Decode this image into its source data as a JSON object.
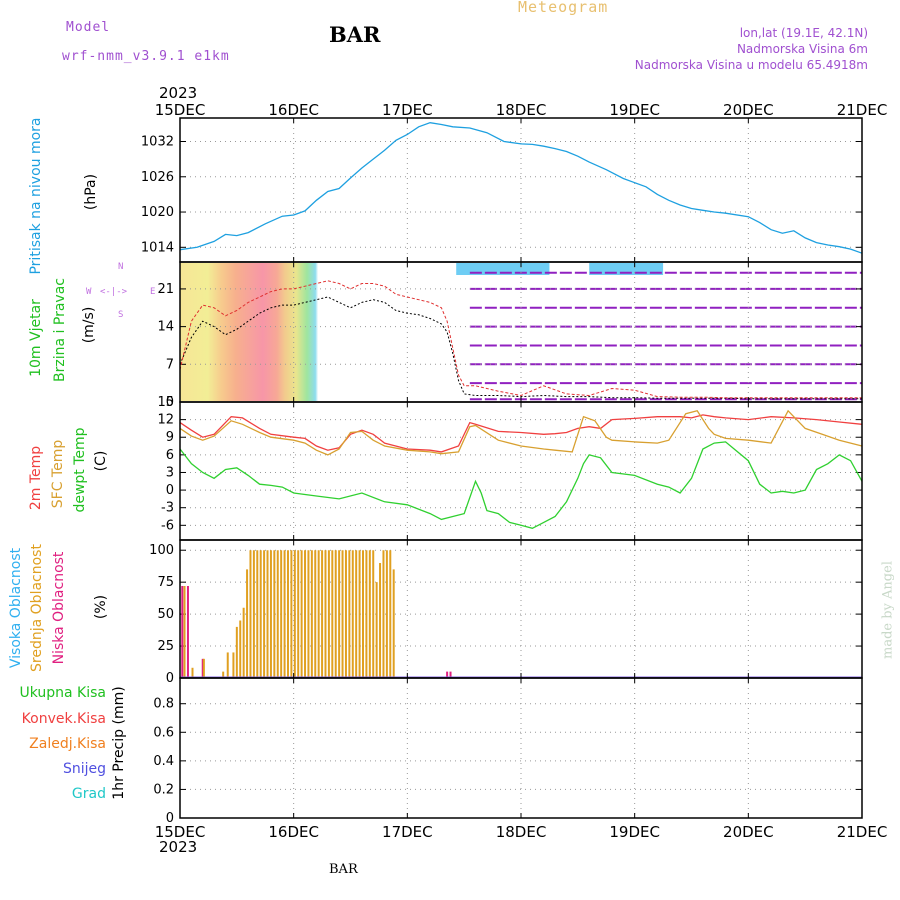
{
  "header": {
    "model_label": "Model",
    "model_name": "wrf-nmm_v3.9.1 e1km",
    "station": "BAR",
    "app_title": "Meteogram",
    "location": "lon,lat (19.1E, 42.1N)",
    "altitude": "Nadmorska Visina 6m",
    "model_altitude": "Nadmorska Visina u modelu 65.4918m"
  },
  "footer": {
    "station": "BAR",
    "credit": "made by Angel"
  },
  "time_axis": {
    "year_top": "2023",
    "year_bottom": "2023",
    "ticks": [
      "15DEC",
      "16DEC",
      "17DEC",
      "18DEC",
      "19DEC",
      "20DEC",
      "21DEC"
    ]
  },
  "colors": {
    "pressure": "#1ea0e0",
    "temp2m": "#f04040",
    "sfc_temp": "#d8a030",
    "dewpt": "#30d030",
    "high_cloud": "#30b0f0",
    "mid_cloud": "#e0a020",
    "low_cloud": "#e02080",
    "wind_label": "#20c020",
    "total_precip": "#20c020",
    "conv_precip": "#f04040",
    "freezing_precip": "#f08020",
    "snow": "#5050e0",
    "hail": "#20c8c8",
    "wind_compass": "#c070e0"
  },
  "panels": {
    "pressure": {
      "label": "Pritisak na nivou mora",
      "unit": "(hPa)"
    },
    "wind": {
      "label1": "10m Vjetar",
      "label2": "Brzina i Pravac",
      "unit": "(m/s)",
      "compass": {
        "n": "N",
        "s": "S",
        "w": "W",
        "e": "E"
      }
    },
    "temp": {
      "label1": "2m Temp",
      "label2": "SFC Temp",
      "label3": "dewpt Temp",
      "unit": "(C)"
    },
    "cloud": {
      "label1": "Visoka Oblacnost",
      "label2": "Srednja Oblacnost",
      "label3": "Niska Oblacnost",
      "unit": "(%)"
    },
    "precip": {
      "unit": "1hr Precip (mm)",
      "legend": [
        "Ukupna Kisa",
        "Konvek.Kisa",
        "Zaledj.Kisa",
        "Snijeg",
        "Grad"
      ]
    }
  },
  "chart_data": [
    {
      "type": "line",
      "title": "Pritisak na nivou mora",
      "ylabel": "(hPa)",
      "x_unit": "days since 15DEC 00Z",
      "ylim": [
        1011.5,
        1036
      ],
      "yticks": [
        1014,
        1020,
        1026,
        1032
      ],
      "grid": true,
      "series": [
        {
          "name": "Pritisak na nivou mora",
          "x": [
            0,
            0.15,
            0.3,
            0.4,
            0.5,
            0.6,
            0.75,
            0.9,
            1.0,
            1.1,
            1.2,
            1.3,
            1.4,
            1.5,
            1.6,
            1.7,
            1.8,
            1.9,
            2.0,
            2.1,
            2.2,
            2.3,
            2.4,
            2.55,
            2.7,
            2.85,
            3.0,
            3.1,
            3.2,
            3.3,
            3.4,
            3.5,
            3.6,
            3.75,
            3.9,
            4.0,
            4.1,
            4.2,
            4.3,
            4.4,
            4.5,
            4.6,
            4.7,
            4.8,
            5.0,
            5.1,
            5.2,
            5.3,
            5.4,
            5.5,
            5.6,
            5.7,
            5.8,
            5.9,
            6.0
          ],
          "y": [
            1013.6,
            1014.0,
            1015.0,
            1016.2,
            1016.0,
            1016.5,
            1018.0,
            1019.3,
            1019.5,
            1020.2,
            1022.0,
            1023.5,
            1024.0,
            1025.8,
            1027.5,
            1029.0,
            1030.5,
            1032.2,
            1033.2,
            1034.5,
            1035.2,
            1034.9,
            1034.5,
            1034.3,
            1033.5,
            1032.0,
            1031.6,
            1031.5,
            1031.2,
            1030.8,
            1030.3,
            1029.5,
            1028.5,
            1027.2,
            1025.7,
            1025.0,
            1024.3,
            1023.0,
            1022.0,
            1021.2,
            1020.6,
            1020.3,
            1020.0,
            1019.8,
            1019.2,
            1018.2,
            1017.0,
            1016.4,
            1016.8,
            1015.6,
            1014.8,
            1014.4,
            1014.1,
            1013.7,
            1013.0
          ]
        }
      ]
    },
    {
      "type": "line",
      "title": "10m Vjetar Brzina i Pravac",
      "ylabel": "(m/s)",
      "x_unit": "days since 15DEC 00Z",
      "ylim": [
        0,
        26
      ],
      "yticks": [
        0,
        7,
        14,
        21
      ],
      "grid": true,
      "series": [
        {
          "name": "wind speed black",
          "x": [
            0,
            0.1,
            0.2,
            0.3,
            0.4,
            0.5,
            0.6,
            0.7,
            0.8,
            0.9,
            1.0,
            1.1,
            1.2,
            1.3,
            1.4,
            1.5,
            1.6,
            1.7,
            1.8,
            1.9,
            2.0,
            2.1,
            2.2,
            2.3,
            2.35,
            2.4,
            2.45,
            2.5,
            2.6,
            2.8,
            3.0,
            3.2,
            3.4,
            3.6,
            3.8,
            4.0,
            4.2,
            4.4,
            4.6,
            4.8,
            5.0,
            5.2,
            5.4,
            5.6,
            5.8,
            6.0
          ],
          "y": [
            7,
            12,
            15,
            14,
            12.5,
            13.5,
            15,
            16.5,
            17.5,
            18,
            18,
            18.5,
            19,
            19.5,
            18.5,
            17.5,
            18.5,
            19,
            18.5,
            17,
            16.5,
            16.2,
            15.5,
            14.5,
            13,
            9,
            4,
            1.5,
            1.2,
            1.2,
            1.0,
            1.2,
            1.0,
            1.0,
            0.8,
            0.8,
            0.7,
            0.7,
            0.7,
            0.7,
            0.6,
            0.6,
            0.6,
            0.6,
            0.6,
            0.6
          ]
        },
        {
          "name": "wind gust red",
          "x": [
            0,
            0.1,
            0.2,
            0.3,
            0.4,
            0.5,
            0.6,
            0.7,
            0.8,
            0.9,
            1.0,
            1.1,
            1.2,
            1.3,
            1.4,
            1.5,
            1.6,
            1.7,
            1.8,
            1.9,
            2.0,
            2.1,
            2.2,
            2.3,
            2.35,
            2.4,
            2.45,
            2.5,
            2.6,
            2.8,
            3.0,
            3.2,
            3.4,
            3.6,
            3.8,
            4.0,
            4.2,
            4.4,
            4.6,
            4.8,
            5.0,
            5.2,
            5.4,
            5.6,
            5.8,
            6.0
          ],
          "y": [
            6,
            15,
            18,
            17.5,
            16,
            17,
            18.5,
            19.5,
            20.5,
            21,
            21,
            21.5,
            22,
            22.5,
            22,
            21,
            22,
            22,
            21.5,
            20,
            19.5,
            19,
            18.5,
            17.5,
            15,
            10,
            5,
            3,
            3,
            2,
            1.2,
            3,
            1.5,
            1.2,
            2.5,
            2.2,
            1.0,
            0.9,
            0.9,
            0.8,
            0.8,
            0.8,
            0.8,
            0.8,
            0.8,
            0.8
          ]
        }
      ]
    },
    {
      "type": "line",
      "title": "2m Temp / SFC Temp / dewpt Temp",
      "ylabel": "(C)",
      "x_unit": "days since 15DEC 00Z",
      "ylim": [
        -8.5,
        15
      ],
      "yticks": [
        -6,
        -3,
        0,
        3,
        6,
        9,
        12,
        15
      ],
      "grid": true,
      "series": [
        {
          "name": "2m Temp",
          "x": [
            0,
            0.1,
            0.2,
            0.3,
            0.45,
            0.55,
            0.7,
            0.8,
            1.0,
            1.1,
            1.2,
            1.3,
            1.4,
            1.5,
            1.6,
            1.7,
            1.8,
            2.0,
            2.2,
            2.3,
            2.45,
            2.55,
            2.6,
            2.8,
            3.0,
            3.2,
            3.3,
            3.4,
            3.5,
            3.6,
            3.7,
            3.8,
            4.0,
            4.2,
            4.4,
            4.5,
            4.6,
            4.7,
            4.8,
            5.0,
            5.2,
            5.4,
            5.6,
            5.8,
            6.0
          ],
          "y": [
            11.5,
            10.2,
            9.0,
            9.5,
            12.5,
            12.3,
            10.5,
            9.5,
            9.0,
            8.8,
            7.5,
            6.8,
            7.2,
            9.5,
            10.2,
            9.5,
            8.0,
            7.0,
            6.8,
            6.5,
            7.5,
            11.5,
            11.2,
            10.0,
            9.8,
            9.5,
            9.6,
            9.8,
            10.5,
            10.8,
            10.5,
            12.0,
            12.2,
            12.5,
            12.5,
            12.3,
            12.8,
            12.5,
            12.3,
            12.0,
            12.5,
            12.3,
            12.0,
            11.6,
            11.2
          ]
        },
        {
          "name": "SFC Temp",
          "x": [
            0,
            0.1,
            0.2,
            0.3,
            0.45,
            0.55,
            0.7,
            0.8,
            1.0,
            1.1,
            1.2,
            1.3,
            1.4,
            1.5,
            1.6,
            1.7,
            1.8,
            2.0,
            2.2,
            2.3,
            2.45,
            2.55,
            2.6,
            2.8,
            3.0,
            3.2,
            3.3,
            3.45,
            3.55,
            3.65,
            3.75,
            3.8,
            4.0,
            4.2,
            4.3,
            4.45,
            4.55,
            4.65,
            4.7,
            4.8,
            5.0,
            5.2,
            5.35,
            5.5,
            5.65,
            5.8,
            6.0
          ],
          "y": [
            10.5,
            9.2,
            8.5,
            9.2,
            11.8,
            11.2,
            9.8,
            9.0,
            8.5,
            8.0,
            6.8,
            6.0,
            7.0,
            9.8,
            10.0,
            8.5,
            7.5,
            6.8,
            6.5,
            6.2,
            6.5,
            10.8,
            11.0,
            8.5,
            7.5,
            7.0,
            6.8,
            6.5,
            12.5,
            11.8,
            9.0,
            8.5,
            8.2,
            8.0,
            8.5,
            13.0,
            13.5,
            10.5,
            9.5,
            8.8,
            8.5,
            8.0,
            13.5,
            10.5,
            9.5,
            8.5,
            7.5
          ]
        },
        {
          "name": "dewpt Temp",
          "x": [
            0,
            0.1,
            0.2,
            0.3,
            0.4,
            0.5,
            0.6,
            0.7,
            0.8,
            0.9,
            1.0,
            1.2,
            1.4,
            1.6,
            1.8,
            2.0,
            2.2,
            2.3,
            2.4,
            2.5,
            2.6,
            2.65,
            2.7,
            2.8,
            2.9,
            3.0,
            3.1,
            3.2,
            3.3,
            3.4,
            3.5,
            3.55,
            3.6,
            3.7,
            3.8,
            4.0,
            4.2,
            4.3,
            4.4,
            4.5,
            4.6,
            4.7,
            4.8,
            5.0,
            5.1,
            5.2,
            5.3,
            5.4,
            5.5,
            5.6,
            5.7,
            5.8,
            5.9,
            6.0
          ],
          "y": [
            7.0,
            4.5,
            3.0,
            2.0,
            3.5,
            3.8,
            2.5,
            1.0,
            0.8,
            0.5,
            -0.5,
            -1.0,
            -1.5,
            -0.5,
            -2.0,
            -2.5,
            -4.0,
            -5.0,
            -4.5,
            -4.0,
            1.5,
            -0.5,
            -3.5,
            -4.0,
            -5.5,
            -6.0,
            -6.5,
            -5.5,
            -4.5,
            -2.0,
            2.0,
            4.5,
            6.0,
            5.5,
            3.0,
            2.5,
            1.0,
            0.5,
            -0.5,
            2.0,
            7.0,
            8.0,
            8.2,
            5.0,
            1.0,
            -0.5,
            -0.2,
            -0.5,
            0.0,
            3.5,
            4.5,
            6.0,
            5.0,
            1.5
          ]
        }
      ]
    },
    {
      "type": "bar",
      "title": "Visoka / Srednja / Niska Oblacnost",
      "ylabel": "(%)",
      "x_unit": "days since 15DEC 00Z",
      "ylim": [
        0,
        108
      ],
      "yticks": [
        0,
        25,
        50,
        75,
        100
      ],
      "grid": true,
      "series": [
        {
          "name": "Niska Oblacnost",
          "x": [
            0.02,
            0.07,
            0.2,
            2.35,
            2.38
          ],
          "values": [
            72,
            72,
            15,
            5,
            5
          ]
        },
        {
          "name": "Srednja Oblacnost",
          "x": [
            0.04,
            0.11,
            0.21,
            0.38,
            0.42,
            0.47,
            0.5,
            0.53,
            0.56,
            0.59,
            0.62,
            0.65,
            0.68,
            0.71,
            0.74,
            0.77,
            0.8,
            0.83,
            0.86,
            0.89,
            0.92,
            0.95,
            0.98,
            1.01,
            1.04,
            1.07,
            1.1,
            1.13,
            1.16,
            1.19,
            1.22,
            1.25,
            1.28,
            1.31,
            1.34,
            1.37,
            1.4,
            1.43,
            1.46,
            1.49,
            1.52,
            1.55,
            1.58,
            1.61,
            1.64,
            1.67,
            1.7,
            1.73,
            1.76,
            1.79,
            1.82,
            1.85,
            1.88
          ],
          "values": [
            72,
            8,
            15,
            5,
            20,
            20,
            40,
            45,
            55,
            85,
            100,
            100,
            100,
            100,
            100,
            100,
            100,
            100,
            100,
            100,
            100,
            100,
            100,
            100,
            100,
            100,
            100,
            100,
            100,
            100,
            100,
            100,
            100,
            100,
            100,
            100,
            100,
            100,
            100,
            100,
            100,
            100,
            100,
            100,
            100,
            100,
            100,
            75,
            90,
            100,
            100,
            100,
            85
          ]
        }
      ]
    },
    {
      "type": "bar",
      "title": "1hr Precip",
      "ylabel": "1hr Precip (mm)",
      "x_unit": "days since 15DEC 00Z",
      "ylim": [
        0,
        0.98
      ],
      "yticks": [
        0,
        0.2,
        0.4,
        0.6,
        0.8
      ],
      "grid": true,
      "series": [
        {
          "name": "Ukupna Kisa",
          "values": []
        },
        {
          "name": "Konvek.Kisa",
          "values": []
        },
        {
          "name": "Zaledj.Kisa",
          "values": []
        },
        {
          "name": "Snijeg",
          "values": []
        },
        {
          "name": "Grad",
          "values": []
        }
      ]
    }
  ]
}
